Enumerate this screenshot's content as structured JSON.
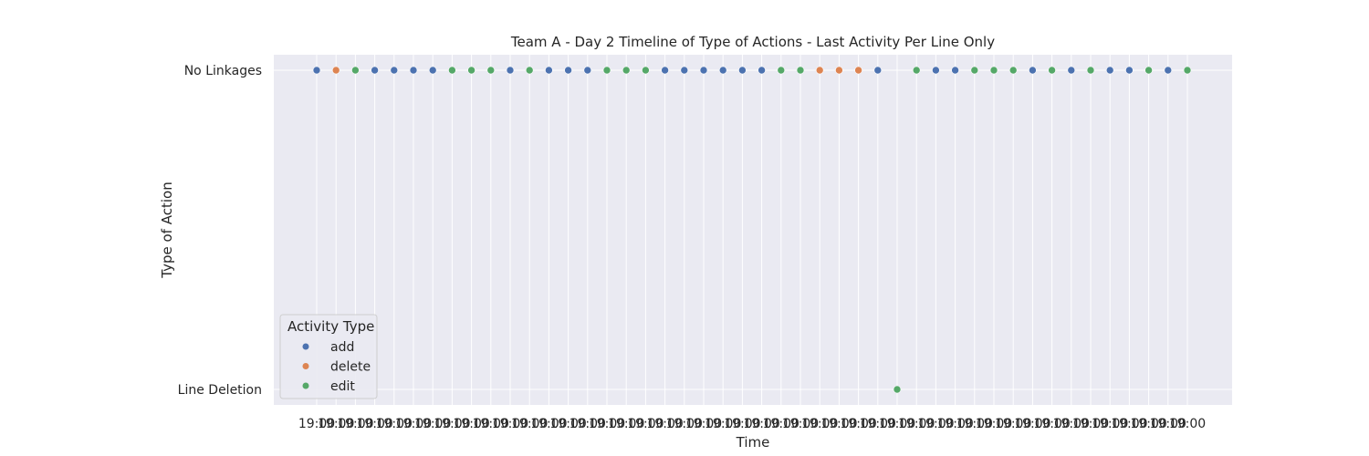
{
  "chart_data": {
    "type": "scatter",
    "title": "Team A - Day 2 Timeline of Type of Actions - Last Activity Per Line Only",
    "xlabel": "Time",
    "ylabel": "Type of Action",
    "y_categories": [
      "No Linkages",
      "Line Deletion"
    ],
    "x_tick_label": "19:00",
    "x_tick_count": 46,
    "grid": true,
    "legend": {
      "title": "Activity Type",
      "placement": "lower-left",
      "entries": [
        {
          "name": "add",
          "color": "#4c72b0"
        },
        {
          "name": "delete",
          "color": "#dd8452"
        },
        {
          "name": "edit",
          "color": "#55a868"
        }
      ]
    },
    "series": [
      {
        "name": "add",
        "color": "#4c72b0",
        "points": [
          {
            "x": 0,
            "y": "No Linkages"
          },
          {
            "x": 3,
            "y": "No Linkages"
          },
          {
            "x": 4,
            "y": "No Linkages"
          },
          {
            "x": 5,
            "y": "No Linkages"
          },
          {
            "x": 6,
            "y": "No Linkages"
          },
          {
            "x": 10,
            "y": "No Linkages"
          },
          {
            "x": 12,
            "y": "No Linkages"
          },
          {
            "x": 13,
            "y": "No Linkages"
          },
          {
            "x": 14,
            "y": "No Linkages"
          },
          {
            "x": 18,
            "y": "No Linkages"
          },
          {
            "x": 19,
            "y": "No Linkages"
          },
          {
            "x": 20,
            "y": "No Linkages"
          },
          {
            "x": 21,
            "y": "No Linkages"
          },
          {
            "x": 22,
            "y": "No Linkages"
          },
          {
            "x": 23,
            "y": "No Linkages"
          },
          {
            "x": 29,
            "y": "No Linkages"
          },
          {
            "x": 32,
            "y": "No Linkages"
          },
          {
            "x": 33,
            "y": "No Linkages"
          },
          {
            "x": 37,
            "y": "No Linkages"
          },
          {
            "x": 39,
            "y": "No Linkages"
          },
          {
            "x": 41,
            "y": "No Linkages"
          },
          {
            "x": 42,
            "y": "No Linkages"
          },
          {
            "x": 44,
            "y": "No Linkages"
          }
        ]
      },
      {
        "name": "delete",
        "color": "#dd8452",
        "points": [
          {
            "x": 1,
            "y": "No Linkages"
          },
          {
            "x": 26,
            "y": "No Linkages"
          },
          {
            "x": 27,
            "y": "No Linkages"
          },
          {
            "x": 28,
            "y": "No Linkages"
          }
        ]
      },
      {
        "name": "edit",
        "color": "#55a868",
        "points": [
          {
            "x": 2,
            "y": "No Linkages"
          },
          {
            "x": 7,
            "y": "No Linkages"
          },
          {
            "x": 8,
            "y": "No Linkages"
          },
          {
            "x": 9,
            "y": "No Linkages"
          },
          {
            "x": 11,
            "y": "No Linkages"
          },
          {
            "x": 15,
            "y": "No Linkages"
          },
          {
            "x": 16,
            "y": "No Linkages"
          },
          {
            "x": 17,
            "y": "No Linkages"
          },
          {
            "x": 24,
            "y": "No Linkages"
          },
          {
            "x": 25,
            "y": "No Linkages"
          },
          {
            "x": 30,
            "y": "Line Deletion"
          },
          {
            "x": 31,
            "y": "No Linkages"
          },
          {
            "x": 34,
            "y": "No Linkages"
          },
          {
            "x": 35,
            "y": "No Linkages"
          },
          {
            "x": 36,
            "y": "No Linkages"
          },
          {
            "x": 38,
            "y": "No Linkages"
          },
          {
            "x": 40,
            "y": "No Linkages"
          },
          {
            "x": 43,
            "y": "No Linkages"
          },
          {
            "x": 45,
            "y": "No Linkages"
          }
        ]
      }
    ]
  }
}
